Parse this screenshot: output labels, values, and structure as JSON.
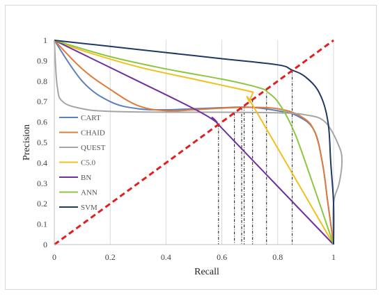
{
  "chart_data": {
    "type": "line",
    "title": "",
    "xlabel": "Recall",
    "ylabel": "Precision",
    "xlim": [
      0,
      1
    ],
    "ylim": [
      0,
      1
    ],
    "x_ticks": [
      "0",
      "0.2",
      "0.4",
      "0.6",
      "0.8",
      "1"
    ],
    "y_ticks": [
      "0",
      "0.1",
      "0.2",
      "0.3",
      "0.4",
      "0.5",
      "0.6",
      "0.7",
      "0.8",
      "0.9",
      "1"
    ],
    "grid": "vertical",
    "legend": "left",
    "colors": {
      "CART": "#5b7fbf",
      "CHAID": "#e07b39",
      "QUEST": "#a5a5a5",
      "C5.0": "#f2c01d",
      "BN": "#7030a0",
      "ANN": "#8dc63f",
      "SVM": "#1f3864",
      "diagonal": "#e02020"
    },
    "series": [
      {
        "name": "CART",
        "points": [
          [
            0,
            1
          ],
          [
            0.1,
            0.8
          ],
          [
            0.2,
            0.7
          ],
          [
            0.3,
            0.665
          ],
          [
            0.4,
            0.66
          ],
          [
            0.5,
            0.665
          ],
          [
            0.6,
            0.67
          ],
          [
            0.7,
            0.672
          ],
          [
            0.8,
            0.655
          ],
          [
            0.87,
            0.63
          ],
          [
            0.93,
            0.56
          ],
          [
            0.96,
            0.4
          ],
          [
            0.98,
            0.2
          ],
          [
            1,
            0
          ]
        ]
      },
      {
        "name": "CHAID",
        "points": [
          [
            0,
            1
          ],
          [
            0.1,
            0.86
          ],
          [
            0.2,
            0.76
          ],
          [
            0.3,
            0.68
          ],
          [
            0.4,
            0.655
          ],
          [
            0.5,
            0.66
          ],
          [
            0.6,
            0.668
          ],
          [
            0.7,
            0.672
          ],
          [
            0.8,
            0.665
          ],
          [
            0.88,
            0.63
          ],
          [
            0.93,
            0.56
          ],
          [
            0.96,
            0.4
          ],
          [
            0.98,
            0.2
          ],
          [
            1,
            0
          ]
        ]
      },
      {
        "name": "QUEST",
        "points": [
          [
            0,
            1
          ],
          [
            0.01,
            0.78
          ],
          [
            0.03,
            0.7
          ],
          [
            0.1,
            0.665
          ],
          [
            0.2,
            0.652
          ],
          [
            0.4,
            0.648
          ],
          [
            0.6,
            0.648
          ],
          [
            0.8,
            0.645
          ],
          [
            0.9,
            0.635
          ],
          [
            0.97,
            0.6
          ],
          [
            1.02,
            0.48
          ],
          [
            1.03,
            0.4
          ],
          [
            1.02,
            0.3
          ],
          [
            1,
            0.2
          ],
          [
            1,
            0
          ]
        ]
      },
      {
        "name": "C5.0",
        "points": [
          [
            0,
            1
          ],
          [
            0.1,
            0.95
          ],
          [
            0.3,
            0.87
          ],
          [
            0.5,
            0.81
          ],
          [
            0.6,
            0.78
          ],
          [
            0.7,
            0.75
          ],
          [
            0.71,
            0.74
          ],
          [
            0.7,
            0.7
          ],
          [
            0.72,
            0.66
          ],
          [
            1,
            0
          ]
        ]
      },
      {
        "name": "BN",
        "points": [
          [
            0,
            1
          ],
          [
            0.3,
            0.8
          ],
          [
            0.5,
            0.665
          ],
          [
            0.58,
            0.6
          ],
          [
            0.6,
            0.57
          ],
          [
            1,
            0
          ]
        ]
      },
      {
        "name": "ANN",
        "points": [
          [
            0,
            1
          ],
          [
            0.2,
            0.92
          ],
          [
            0.4,
            0.86
          ],
          [
            0.6,
            0.81
          ],
          [
            0.7,
            0.78
          ],
          [
            0.75,
            0.76
          ],
          [
            0.76,
            0.75
          ],
          [
            0.8,
            0.7
          ],
          [
            0.85,
            0.58
          ],
          [
            0.9,
            0.4
          ],
          [
            1,
            0
          ]
        ]
      },
      {
        "name": "SVM",
        "points": [
          [
            0,
            1
          ],
          [
            0.2,
            0.97
          ],
          [
            0.4,
            0.94
          ],
          [
            0.6,
            0.91
          ],
          [
            0.8,
            0.88
          ],
          [
            0.85,
            0.855
          ],
          [
            0.9,
            0.82
          ],
          [
            0.95,
            0.74
          ],
          [
            0.98,
            0.6
          ],
          [
            0.99,
            0.4
          ],
          [
            1,
            0.2
          ],
          [
            1,
            0
          ]
        ]
      }
    ],
    "diagonal": [
      [
        0,
        0
      ],
      [
        1,
        1
      ]
    ],
    "dropdown_x": [
      0.588,
      0.645,
      0.671,
      0.68,
      0.71,
      0.76,
      0.852
    ]
  }
}
